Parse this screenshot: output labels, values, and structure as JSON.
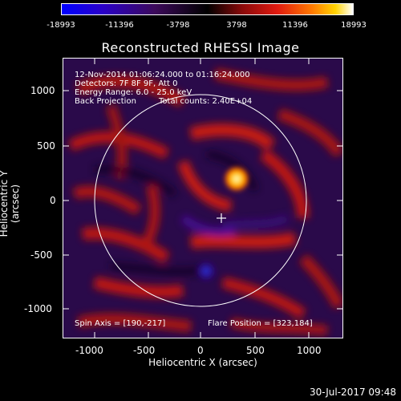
{
  "colorbar": {
    "ticks": [
      "-18993",
      "-11396",
      "-3798",
      "3798",
      "11396",
      "18993"
    ]
  },
  "title": "Reconstructed RHESSI Image",
  "annotations": {
    "time": "12-Nov-2014 01:06:24.000 to 01:16:24.000",
    "detectors": "Detectors: 7F 8F 9F, Att 0",
    "energy": "Energy Range: 6.0 - 25.0 keV",
    "method": "Back Projection",
    "counts": "Total counts: 2.40E+04",
    "spin_axis": "Spin Axis = [190,-217]",
    "flare_position": "Flare Position = [323,184]"
  },
  "axes": {
    "xlabel": "Heliocentric X (arcsec)",
    "ylabel": "Heliocentric Y (arcsec)",
    "x_ticks": [
      "-1000",
      "-500",
      "0",
      "500",
      "1000"
    ],
    "y_ticks": [
      "1000",
      "500",
      "0",
      "-500",
      "-1000"
    ]
  },
  "timestamp": "30-Jul-2017 09:48",
  "colors": {
    "background": "#000000",
    "accent_hot": "#ffd200",
    "accent_cool": "#3c0a5a"
  }
}
